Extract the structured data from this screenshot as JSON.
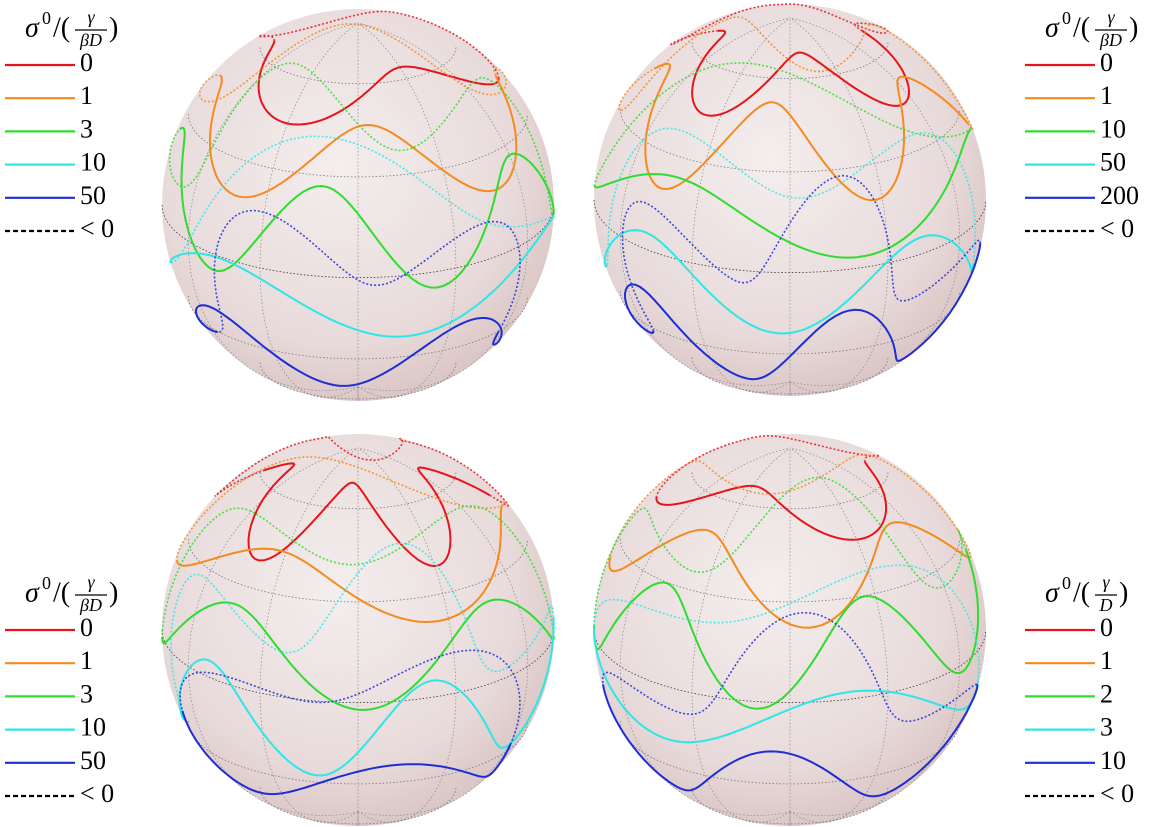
{
  "panels": [
    {
      "title": {
        "symbol": "σ",
        "sup": "0",
        "open": "/(",
        "num": "γ",
        "den": "βD",
        "close": ")"
      },
      "entries": [
        {
          "label": "0",
          "color": "#e8141b",
          "style": "solid"
        },
        {
          "label": "1",
          "color": "#f58a1f",
          "style": "solid"
        },
        {
          "label": "3",
          "color": "#2fdc2f",
          "style": "solid"
        },
        {
          "label": "10",
          "color": "#2ee6e6",
          "style": "solid"
        },
        {
          "label": "50",
          "color": "#1e2ed6",
          "style": "solid"
        },
        {
          "label": "< 0",
          "color": "#000000",
          "style": "dashed"
        }
      ]
    },
    {
      "title": {
        "symbol": "σ",
        "sup": "0",
        "open": "/(",
        "num": "γ",
        "den": "βD",
        "close": ")"
      },
      "entries": [
        {
          "label": "0",
          "color": "#e8141b",
          "style": "solid"
        },
        {
          "label": "1",
          "color": "#f58a1f",
          "style": "solid"
        },
        {
          "label": "10",
          "color": "#2fdc2f",
          "style": "solid"
        },
        {
          "label": "50",
          "color": "#2ee6e6",
          "style": "solid"
        },
        {
          "label": "200",
          "color": "#1e2ed6",
          "style": "solid"
        },
        {
          "label": "< 0",
          "color": "#000000",
          "style": "dashed"
        }
      ]
    },
    {
      "title": {
        "symbol": "σ",
        "sup": "0",
        "open": "/(",
        "num": "γ",
        "den": "βD",
        "close": ")"
      },
      "entries": [
        {
          "label": "0",
          "color": "#e8141b",
          "style": "solid"
        },
        {
          "label": "1",
          "color": "#f58a1f",
          "style": "solid"
        },
        {
          "label": "3",
          "color": "#2fdc2f",
          "style": "solid"
        },
        {
          "label": "10",
          "color": "#2ee6e6",
          "style": "solid"
        },
        {
          "label": "50",
          "color": "#1e2ed6",
          "style": "solid"
        },
        {
          "label": "< 0",
          "color": "#000000",
          "style": "dashed"
        }
      ]
    },
    {
      "title": {
        "symbol": "σ",
        "sup": "0",
        "open": "/(",
        "num": "γ",
        "den": "D",
        "close": ")"
      },
      "entries": [
        {
          "label": "0",
          "color": "#e8141b",
          "style": "solid"
        },
        {
          "label": "1",
          "color": "#f58a1f",
          "style": "solid"
        },
        {
          "label": "2",
          "color": "#2fdc2f",
          "style": "solid"
        },
        {
          "label": "3",
          "color": "#2ee6e6",
          "style": "solid"
        },
        {
          "label": "10",
          "color": "#1e2ed6",
          "style": "solid"
        },
        {
          "label": "< 0",
          "color": "#000000",
          "style": "dashed"
        }
      ]
    }
  ]
}
